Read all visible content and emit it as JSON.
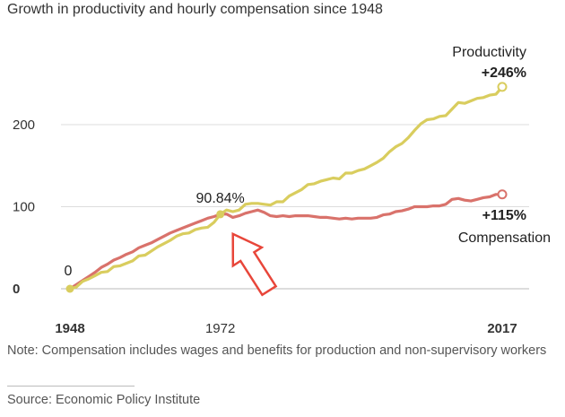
{
  "chart_data": {
    "type": "line",
    "title": "Growth in productivity and hourly compensation since 1948",
    "x_ticks": [
      {
        "label": "1948",
        "value": 1948,
        "bold": true
      },
      {
        "label": "1972",
        "value": 1972,
        "bold": false
      },
      {
        "label": "2017",
        "value": 2017,
        "bold": true
      }
    ],
    "y_ticks": [
      {
        "label": "0",
        "value": 0,
        "bold": true
      },
      {
        "label": "100",
        "value": 100,
        "bold": false
      },
      {
        "label": "200",
        "value": 200,
        "bold": false
      }
    ],
    "xlim": [
      1948,
      2017
    ],
    "ylim": [
      0,
      260
    ],
    "grid": true,
    "colors": {
      "productivity": "#d9cd5e",
      "compensation": "#d9726b",
      "grid": "#dddddd",
      "arrow": "#e8463a"
    },
    "series": [
      {
        "name": "Productivity",
        "end_label": "+246%",
        "color": "#d9cd5e",
        "x": [
          1948,
          1949,
          1950,
          1951,
          1952,
          1953,
          1954,
          1955,
          1956,
          1957,
          1958,
          1959,
          1960,
          1961,
          1962,
          1963,
          1964,
          1965,
          1966,
          1967,
          1968,
          1969,
          1970,
          1971,
          1972,
          1973,
          1974,
          1975,
          1976,
          1977,
          1978,
          1979,
          1980,
          1981,
          1982,
          1983,
          1984,
          1985,
          1986,
          1987,
          1988,
          1989,
          1990,
          1991,
          1992,
          1993,
          1994,
          1995,
          1996,
          1997,
          1998,
          1999,
          2000,
          2001,
          2002,
          2003,
          2004,
          2005,
          2006,
          2007,
          2008,
          2009,
          2010,
          2011,
          2012,
          2013,
          2014,
          2015,
          2016,
          2017
        ],
        "values": [
          0,
          2,
          9,
          12,
          16,
          20,
          21,
          27,
          28,
          31,
          34,
          40,
          41,
          46,
          51,
          55,
          59,
          64,
          67,
          68,
          72,
          74,
          75,
          81,
          90.84,
          96,
          94,
          96,
          103,
          104,
          104,
          103,
          102,
          106,
          106,
          113,
          117,
          121,
          127,
          128,
          131,
          133,
          135,
          134,
          141,
          141,
          144,
          146,
          150,
          154,
          159,
          167,
          173,
          177,
          184,
          193,
          201,
          206,
          207,
          210,
          211,
          219,
          227,
          226,
          229,
          232,
          233,
          236,
          237,
          246
        ]
      },
      {
        "name": "Compensation",
        "end_label": "+115%",
        "color": "#d9726b",
        "x": [
          1948,
          1949,
          1950,
          1951,
          1952,
          1953,
          1954,
          1955,
          1956,
          1957,
          1958,
          1959,
          1960,
          1961,
          1962,
          1963,
          1964,
          1965,
          1966,
          1967,
          1968,
          1969,
          1970,
          1971,
          1972,
          1973,
          1974,
          1975,
          1976,
          1977,
          1978,
          1979,
          1980,
          1981,
          1982,
          1983,
          1984,
          1985,
          1986,
          1987,
          1988,
          1989,
          1990,
          1991,
          1992,
          1993,
          1994,
          1995,
          1996,
          1997,
          1998,
          1999,
          2000,
          2001,
          2002,
          2003,
          2004,
          2005,
          2006,
          2007,
          2008,
          2009,
          2010,
          2011,
          2012,
          2013,
          2014,
          2015,
          2016,
          2017
        ],
        "values": [
          0,
          5,
          10,
          15,
          20,
          26,
          30,
          35,
          38,
          42,
          45,
          50,
          53,
          56,
          60,
          64,
          68,
          71,
          74,
          77,
          80,
          83,
          86,
          88,
          90.84,
          91,
          87,
          89,
          92,
          94,
          96,
          93,
          89,
          88,
          89,
          88,
          89,
          89,
          89,
          88,
          87,
          87,
          86,
          85,
          86,
          85,
          86,
          86,
          86,
          87,
          90,
          91,
          94,
          95,
          97,
          100,
          100,
          100,
          101,
          101,
          103,
          109,
          110,
          108,
          107,
          109,
          111,
          112,
          115,
          115
        ]
      }
    ],
    "annotations": {
      "start_label": "0",
      "divergence_label": "90.84%",
      "divergence_year": 1972,
      "divergence_value": 90.84
    },
    "note": "Note: Compensation includes wages and benefits for production and non-supervisory workers",
    "source": "Source: Economic Policy Institute"
  }
}
